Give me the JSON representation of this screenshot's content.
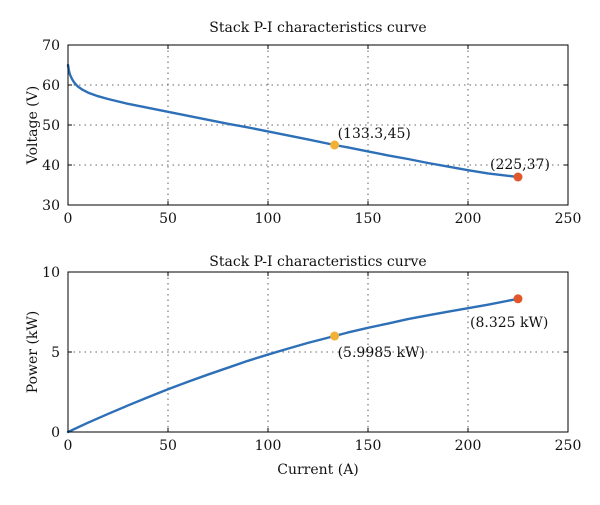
{
  "colors": {
    "curve": "#2e70b8",
    "marker_mid": "#f2b134",
    "marker_end": "#e0572b",
    "axes": "#000000"
  },
  "chart_data": [
    {
      "type": "line",
      "title": "Stack P-I characteristics curve",
      "xlabel": "",
      "ylabel": "Voltage (V)",
      "xlim": [
        0,
        250
      ],
      "ylim": [
        30,
        70
      ],
      "xticks": [
        0,
        50,
        100,
        150,
        200,
        250
      ],
      "yticks": [
        30,
        40,
        50,
        60,
        70
      ],
      "grid": true,
      "series": [
        {
          "x": [
            0,
            0.5,
            1,
            2,
            3,
            4,
            5,
            7,
            10,
            15,
            20,
            30,
            40,
            50,
            60,
            70,
            80,
            90,
            100,
            110,
            120,
            133.3,
            140,
            150,
            160,
            170,
            180,
            190,
            200,
            210,
            225
          ],
          "y": [
            65,
            63.5,
            62.6,
            61.5,
            60.7,
            60.1,
            59.6,
            58.9,
            58.1,
            57.2,
            56.5,
            55.3,
            54.3,
            53.3,
            52.3,
            51.3,
            50.3,
            49.4,
            48.4,
            47.4,
            46.4,
            45,
            44.4,
            43.4,
            42.4,
            41.5,
            40.5,
            39.6,
            38.7,
            37.9,
            37
          ]
        }
      ],
      "markers": [
        {
          "x": 133.3,
          "y": 45,
          "label": "(133.3,45)",
          "color": "#f2b134"
        },
        {
          "x": 225,
          "y": 37,
          "label": "(225,37)",
          "color": "#e0572b"
        }
      ]
    },
    {
      "type": "line",
      "title": "Stack P-I characteristics curve",
      "xlabel": "Current (A)",
      "ylabel": "Power (kW)",
      "xlim": [
        0,
        250
      ],
      "ylim": [
        0,
        10
      ],
      "xticks": [
        0,
        50,
        100,
        150,
        200,
        250
      ],
      "yticks": [
        0,
        5,
        10
      ],
      "grid": true,
      "series": [
        {
          "x": [
            0,
            10,
            20,
            30,
            40,
            50,
            60,
            70,
            80,
            90,
            100,
            110,
            120,
            133.3,
            140,
            150,
            160,
            170,
            180,
            190,
            200,
            210,
            225
          ],
          "y": [
            0,
            0.58,
            1.13,
            1.66,
            2.17,
            2.67,
            3.14,
            3.59,
            4.02,
            4.45,
            4.84,
            5.21,
            5.57,
            5.9985,
            6.22,
            6.51,
            6.78,
            7.06,
            7.29,
            7.52,
            7.74,
            7.96,
            8.325
          ]
        }
      ],
      "markers": [
        {
          "x": 133.3,
          "y": 5.9985,
          "label": "(5.9985 kW)",
          "color": "#f2b134"
        },
        {
          "x": 225,
          "y": 8.325,
          "label": "(8.325 kW)",
          "color": "#e0572b"
        }
      ]
    }
  ]
}
